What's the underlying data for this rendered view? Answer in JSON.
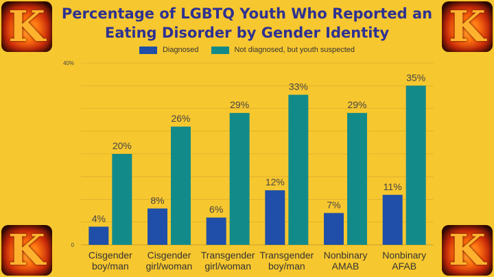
{
  "title": "Percentage of LGBTQ Youth Who Reported an Eating Disorder by Gender Identity",
  "logo_letter": "K",
  "colors": {
    "background": "#f7c72f",
    "diagnosed": "#1f4fa8",
    "suspected": "#138a8a",
    "title": "#2e3192"
  },
  "legend": {
    "diagnosed": "Diagnosed",
    "suspected": "Not diagnosed, but youth suspected"
  },
  "chart_data": {
    "type": "bar",
    "title": "Percentage of LGBTQ Youth Who Reported an Eating Disorder by Gender Identity",
    "categories": [
      [
        "Cisgender",
        "boy/man"
      ],
      [
        "Cisgender",
        "girl/woman"
      ],
      [
        "Transgender",
        "girl/woman"
      ],
      [
        "Transgender",
        "boy/man"
      ],
      [
        "Nonbinary",
        "AMAB"
      ],
      [
        "Nonbinary",
        "AFAB"
      ]
    ],
    "series": [
      {
        "name": "Diagnosed",
        "values": [
          4,
          8,
          6,
          12,
          7,
          11
        ],
        "labels": [
          "4%",
          "8%",
          "6%",
          "12%",
          "7%",
          "11%"
        ]
      },
      {
        "name": "Not diagnosed, but youth suspected",
        "values": [
          20,
          26,
          29,
          33,
          29,
          35
        ],
        "labels": [
          "20%",
          "26%",
          "29%",
          "33%",
          "29%",
          "35%"
        ]
      }
    ],
    "ylim": [
      0,
      40
    ],
    "ytick_labels": [
      "0",
      "40%"
    ],
    "grid": true,
    "legend_position": "top"
  }
}
